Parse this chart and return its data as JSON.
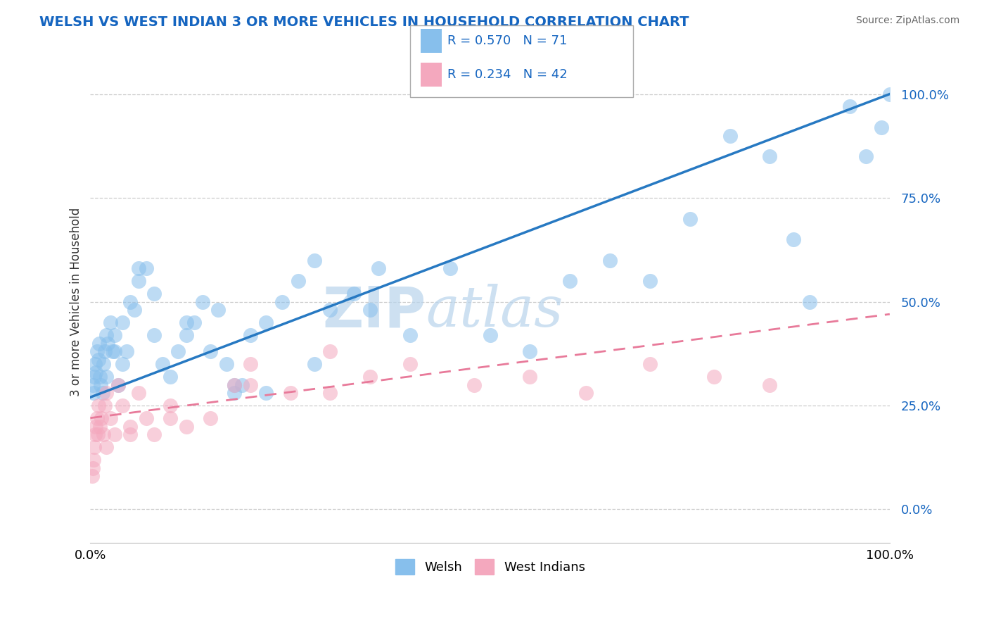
{
  "title": "WELSH VS WEST INDIAN 3 OR MORE VEHICLES IN HOUSEHOLD CORRELATION CHART",
  "source": "Source: ZipAtlas.com",
  "ylabel": "3 or more Vehicles in Household",
  "ytick_vals": [
    0.0,
    25.0,
    50.0,
    75.0,
    100.0
  ],
  "xlim": [
    0,
    100
  ],
  "ylim": [
    -8,
    108
  ],
  "welsh_color": "#87BFEC",
  "west_indian_color": "#F4A8BE",
  "welsh_line_color": "#2779C2",
  "west_indian_line_color": "#E87A9A",
  "legend_color": "#1565C0",
  "title_color": "#1565C0",
  "source_color": "#666666",
  "grid_color": "#CCCCCC",
  "watermark_color": "#C5DCF0",
  "welsh_R": 0.57,
  "welsh_N": 71,
  "west_indian_R": 0.234,
  "west_indian_N": 42,
  "welsh_line_start_y": 27.0,
  "welsh_line_end_y": 100.0,
  "west_indian_line_start_y": 22.0,
  "west_indian_line_end_y": 47.0,
  "welsh_x": [
    0.3,
    0.4,
    0.5,
    0.6,
    0.7,
    0.8,
    1.0,
    1.1,
    1.2,
    1.3,
    1.5,
    1.6,
    1.8,
    2.0,
    2.2,
    2.5,
    2.8,
    3.0,
    3.5,
    4.0,
    4.5,
    5.0,
    5.5,
    6.0,
    7.0,
    8.0,
    9.0,
    10.0,
    11.0,
    12.0,
    13.0,
    14.0,
    15.0,
    16.0,
    17.0,
    18.0,
    19.0,
    20.0,
    22.0,
    24.0,
    26.0,
    28.0,
    30.0,
    33.0,
    36.0,
    40.0,
    45.0,
    50.0,
    55.0,
    60.0,
    65.0,
    70.0,
    75.0,
    80.0,
    85.0,
    88.0,
    90.0,
    95.0,
    97.0,
    99.0,
    100.0,
    28.0,
    35.0,
    18.0,
    22.0,
    8.0,
    12.0,
    6.0,
    4.0,
    3.0,
    2.0
  ],
  "welsh_y": [
    30,
    28,
    32,
    35,
    33,
    38,
    36,
    40,
    32,
    30,
    28,
    35,
    38,
    42,
    40,
    45,
    38,
    42,
    30,
    35,
    38,
    50,
    48,
    55,
    58,
    42,
    35,
    32,
    38,
    42,
    45,
    50,
    38,
    48,
    35,
    28,
    30,
    42,
    45,
    50,
    55,
    60,
    48,
    52,
    58,
    42,
    58,
    42,
    38,
    55,
    60,
    55,
    70,
    90,
    85,
    65,
    50,
    97,
    85,
    92,
    100,
    35,
    48,
    30,
    28,
    52,
    45,
    58,
    45,
    38,
    32
  ],
  "west_indian_x": [
    0.2,
    0.3,
    0.4,
    0.5,
    0.6,
    0.7,
    0.8,
    0.9,
    1.0,
    1.2,
    1.4,
    1.6,
    1.8,
    2.0,
    2.5,
    3.0,
    3.5,
    4.0,
    5.0,
    6.0,
    7.0,
    8.0,
    10.0,
    12.0,
    15.0,
    18.0,
    20.0,
    25.0,
    30.0,
    35.0,
    40.0,
    48.0,
    55.0,
    62.0,
    70.0,
    78.0,
    85.0,
    30.0,
    20.0,
    10.0,
    5.0,
    2.0
  ],
  "west_indian_y": [
    8,
    10,
    12,
    15,
    18,
    20,
    22,
    18,
    25,
    20,
    22,
    18,
    25,
    28,
    22,
    18,
    30,
    25,
    20,
    28,
    22,
    18,
    25,
    20,
    22,
    30,
    35,
    28,
    38,
    32,
    35,
    30,
    32,
    28,
    35,
    32,
    30,
    28,
    30,
    22,
    18,
    15
  ]
}
